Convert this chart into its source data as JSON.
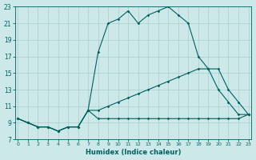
{
  "xlabel": "Humidex (Indice chaleur)",
  "bg_color": "#cde8e8",
  "grid_color": "#aacece",
  "line_color": "#006060",
  "xlim": [
    0,
    23
  ],
  "ylim": [
    7,
    23
  ],
  "ytick_vals": [
    7,
    9,
    11,
    13,
    15,
    17,
    19,
    21,
    23
  ],
  "xtick_vals": [
    0,
    1,
    2,
    3,
    4,
    5,
    6,
    7,
    8,
    9,
    10,
    11,
    12,
    13,
    14,
    15,
    16,
    17,
    18,
    19,
    20,
    21,
    22,
    23
  ],
  "series": [
    {
      "x": [
        0,
        1,
        2,
        3,
        4,
        5,
        6,
        7,
        8,
        9,
        10,
        11,
        12,
        13,
        14,
        15,
        16,
        17,
        18,
        19,
        20,
        21,
        22,
        23
      ],
      "y": [
        9.5,
        9.0,
        8.5,
        8.5,
        8.0,
        8.5,
        8.5,
        10.5,
        17.5,
        21.0,
        21.5,
        22.5,
        21.0,
        22.0,
        22.5,
        23.0,
        22.0,
        21.0,
        17.0,
        15.5,
        13.0,
        11.5,
        10.0,
        10.0
      ]
    },
    {
      "x": [
        0,
        1,
        2,
        3,
        4,
        5,
        6,
        7,
        8,
        9,
        10,
        11,
        12,
        13,
        14,
        15,
        16,
        17,
        18,
        19,
        20,
        21,
        22,
        23
      ],
      "y": [
        9.5,
        9.0,
        8.5,
        8.5,
        8.0,
        8.5,
        8.5,
        10.5,
        10.5,
        11.0,
        11.5,
        12.0,
        12.5,
        13.0,
        13.5,
        14.0,
        14.5,
        15.0,
        15.5,
        15.5,
        15.5,
        13.0,
        11.5,
        10.0
      ]
    },
    {
      "x": [
        0,
        1,
        2,
        3,
        4,
        5,
        6,
        7,
        8,
        9,
        10,
        11,
        12,
        13,
        14,
        15,
        16,
        17,
        18,
        19,
        20,
        21,
        22,
        23
      ],
      "y": [
        9.5,
        9.0,
        8.5,
        8.5,
        8.0,
        8.5,
        8.5,
        10.5,
        9.5,
        9.5,
        9.5,
        9.5,
        9.5,
        9.5,
        9.5,
        9.5,
        9.5,
        9.5,
        9.5,
        9.5,
        9.5,
        9.5,
        9.5,
        10.0
      ]
    }
  ]
}
